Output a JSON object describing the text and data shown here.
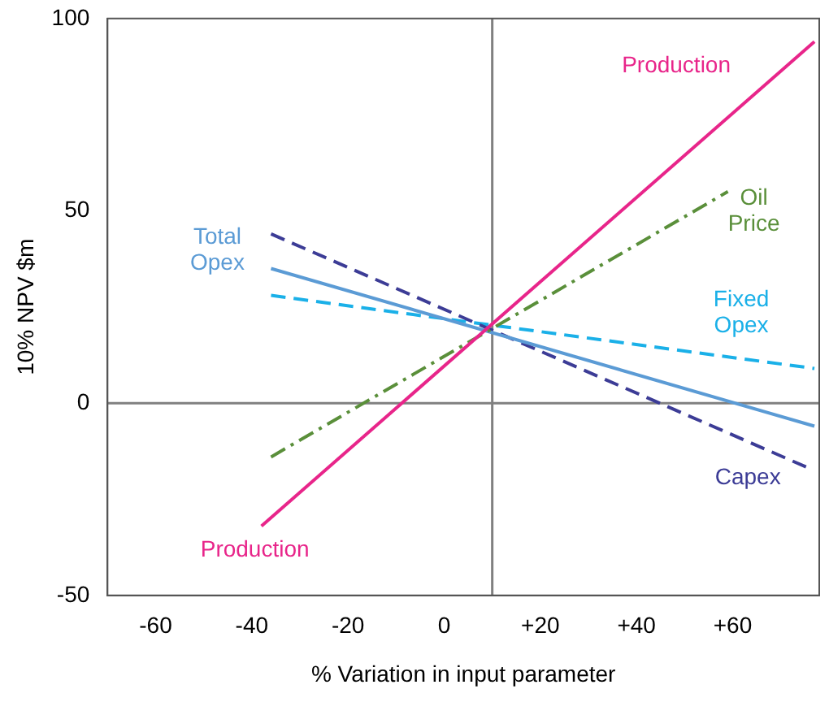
{
  "chart_data": {
    "type": "line",
    "xlabel": "% Variation in input parameter",
    "ylabel": "10% NPV $m",
    "xlim": [
      -70,
      78
    ],
    "ylim": [
      -50,
      100
    ],
    "xticks": [
      -60,
      -40,
      -20,
      0,
      {
        "value": 20,
        "label": "+20"
      },
      {
        "value": 40,
        "label": "+40"
      },
      {
        "value": 60,
        "label": "+60"
      }
    ],
    "yticks": [
      -50,
      0,
      50,
      100
    ],
    "grid": false,
    "legend": false,
    "marker": "none",
    "series": [
      {
        "name": "Production",
        "color": "#e8258a",
        "line_style": "solid",
        "x": [
          -38,
          77
        ],
        "values": [
          -32,
          94
        ]
      },
      {
        "name": "Oil Price",
        "color": "#5a8f3a",
        "line_style": "dashdot",
        "x": [
          -36,
          59
        ],
        "values": [
          -14,
          55
        ]
      },
      {
        "name": "Total Opex",
        "color": "#5b9bd5",
        "line_style": "solid",
        "x": [
          -36,
          77
        ],
        "values": [
          35,
          -6
        ]
      },
      {
        "name": "Capex",
        "color": "#3c3c96",
        "line_style": "dashed",
        "x": [
          -36,
          76
        ],
        "values": [
          44,
          -17
        ]
      },
      {
        "name": "Fixed Opex",
        "color": "#1ab0e8",
        "line_style": "dashed",
        "x": [
          -36,
          77
        ],
        "values": [
          28,
          9
        ]
      }
    ],
    "ref_lines": [
      {
        "axis": "x",
        "value": 10,
        "color": "#808080"
      },
      {
        "axis": "y",
        "value": 0,
        "color": "#808080"
      }
    ]
  }
}
